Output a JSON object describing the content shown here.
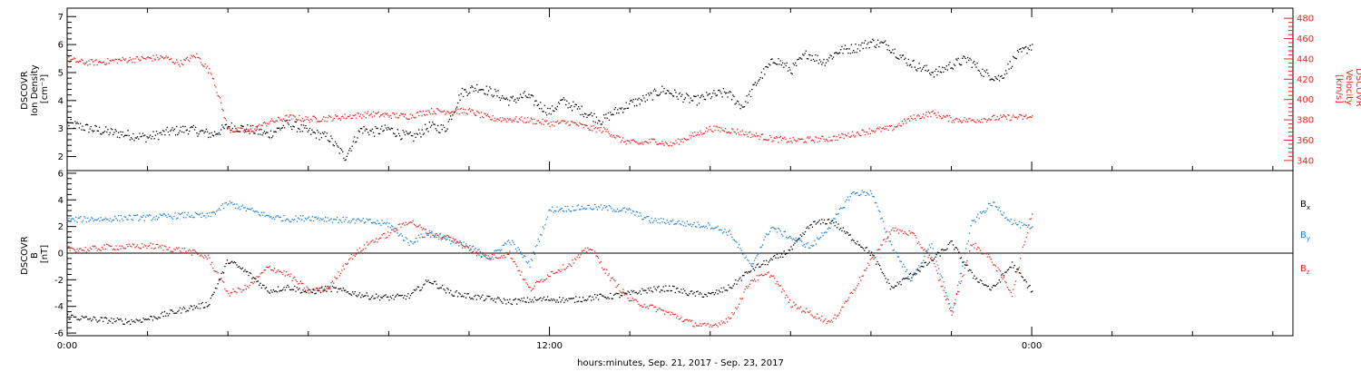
{
  "colors": {
    "density": "#000000",
    "velocity": "#e8261f",
    "bx": "#000000",
    "by": "#1b7fd6",
    "bz": "#e8261f",
    "axis": "#000000"
  },
  "chart_data": [
    {
      "type": "scatter",
      "panel": "plasma",
      "ylabel_lines": [
        "DSCOVR",
        "Ion Density",
        "[cm⁻³]"
      ],
      "y2label_lines": [
        "DSCOVR",
        "Velocity",
        "[km/s]"
      ],
      "ylim": [
        1.5,
        7.3
      ],
      "yticks": [
        "2",
        "3",
        "4",
        "5",
        "6",
        "7"
      ],
      "y2lim": [
        330,
        490
      ],
      "y2ticks": [
        "340",
        "360",
        "380",
        "400",
        "420",
        "440",
        "460",
        "480"
      ],
      "series": [
        {
          "axis": "left",
          "color": "#000000",
          "x": [
            0,
            0.3,
            0.6,
            1.0,
            1.5,
            2.0,
            2.5,
            3.0,
            3.3,
            3.6,
            4.0,
            4.5,
            5.0,
            5.5,
            6.0,
            6.5,
            6.9,
            7.3,
            7.6,
            8.0,
            8.3,
            8.6,
            9.0,
            9.4,
            9.8,
            10.2,
            10.6,
            11.0,
            11.4,
            11.8,
            12.0,
            12.3,
            12.6,
            13.0,
            13.3,
            13.6,
            14.0,
            14.4,
            14.8,
            15.2,
            15.6,
            16.0,
            16.4,
            16.8,
            17.2,
            17.6,
            18.0,
            18.4,
            18.8,
            19.2,
            19.6,
            20.0,
            20.4,
            20.8,
            21.2,
            21.6,
            22.0,
            22.4,
            22.8,
            23.2,
            23.6,
            24.0
          ],
          "y": [
            3.2,
            3.1,
            3.0,
            2.9,
            2.8,
            2.7,
            2.9,
            3.0,
            2.9,
            2.8,
            3.1,
            3.0,
            2.8,
            3.2,
            2.9,
            2.7,
            2.0,
            3.0,
            2.9,
            3.0,
            2.8,
            2.7,
            3.1,
            3.0,
            4.3,
            4.5,
            4.3,
            4.0,
            4.2,
            3.8,
            3.6,
            4.0,
            3.8,
            3.5,
            3.3,
            3.6,
            3.9,
            4.1,
            4.4,
            4.2,
            4.0,
            4.2,
            4.3,
            3.8,
            4.8,
            5.5,
            5.1,
            5.7,
            5.4,
            5.8,
            5.9,
            6.1,
            6.0,
            5.5,
            5.2,
            5.0,
            5.3,
            5.5,
            5.0,
            4.8,
            5.6,
            6.0
          ]
        },
        {
          "axis": "right",
          "color": "#e8261f",
          "x": [
            0,
            0.4,
            0.8,
            1.2,
            1.6,
            2.0,
            2.4,
            2.8,
            3.2,
            3.6,
            4.0,
            4.5,
            5.0,
            5.5,
            6.0,
            6.5,
            7.0,
            7.5,
            8.0,
            8.5,
            9.0,
            9.5,
            10.0,
            10.5,
            11.0,
            11.5,
            12.0,
            12.5,
            13.0,
            13.4,
            13.8,
            14.2,
            14.6,
            15.0,
            15.5,
            16.0,
            16.5,
            17.0,
            17.5,
            18.0,
            18.5,
            19.0,
            19.5,
            20.0,
            20.5,
            21.0,
            21.5,
            22.0,
            22.5,
            23.0,
            23.5,
            24.0
          ],
          "y": [
            440,
            437,
            437,
            439,
            440,
            441,
            442,
            436,
            444,
            425,
            371,
            369,
            378,
            383,
            381,
            382,
            384,
            386,
            385,
            384,
            389,
            389,
            389,
            382,
            381,
            380,
            377,
            378,
            372,
            370,
            360,
            357,
            360,
            356,
            364,
            372,
            370,
            366,
            362,
            360,
            361,
            362,
            366,
            370,
            372,
            382,
            387,
            381,
            380,
            382,
            383,
            383
          ]
        }
      ]
    },
    {
      "type": "scatter",
      "panel": "magnetic",
      "ylabel_lines": [
        "DSCOVR",
        "B",
        "[nT]"
      ],
      "ylim": [
        -6.2,
        6.2
      ],
      "yticks": [
        "-6",
        "-4",
        "-2",
        "0",
        "2",
        "4",
        "6"
      ],
      "legend_position": "right",
      "series": [
        {
          "name": "Bx",
          "color": "#000000",
          "x": [
            0,
            0.5,
            1.0,
            1.5,
            2.0,
            2.5,
            3.0,
            3.5,
            4.0,
            4.5,
            5.0,
            5.5,
            6.0,
            6.5,
            7.0,
            7.5,
            8.0,
            8.5,
            9.0,
            9.5,
            10.0,
            10.5,
            11.0,
            11.5,
            12.0,
            12.5,
            13.0,
            13.5,
            14.0,
            14.5,
            15.0,
            15.5,
            16.0,
            16.5,
            17.0,
            17.5,
            18.0,
            18.5,
            19.0,
            19.5,
            20.0,
            20.5,
            21.0,
            21.5,
            22.0,
            22.5,
            23.0,
            23.5,
            24.0
          ],
          "y": [
            -4.7,
            -4.9,
            -5.0,
            -5.1,
            -4.9,
            -4.5,
            -4.1,
            -3.8,
            -0.5,
            -1.5,
            -2.8,
            -2.5,
            -2.9,
            -2.6,
            -2.9,
            -3.2,
            -3.3,
            -3.2,
            -2.0,
            -2.9,
            -3.2,
            -3.4,
            -3.6,
            -3.5,
            -3.4,
            -3.5,
            -3.3,
            -3.2,
            -3.0,
            -2.7,
            -2.6,
            -3.0,
            -3.1,
            -2.5,
            -1.2,
            -0.5,
            0.3,
            2.2,
            2.5,
            1.2,
            0.0,
            -2.6,
            -1.6,
            -0.5,
            0.8,
            -1.6,
            -2.7,
            -0.8,
            -2.8
          ]
        },
        {
          "name": "By",
          "color": "#1b7fd6",
          "x": [
            0,
            0.5,
            1.0,
            1.5,
            2.0,
            2.5,
            3.0,
            3.5,
            4.0,
            4.5,
            5.0,
            5.5,
            6.0,
            6.5,
            7.0,
            7.5,
            8.0,
            8.5,
            9.0,
            9.5,
            10.0,
            10.5,
            11.0,
            11.5,
            12.0,
            12.5,
            13.0,
            13.5,
            14.0,
            14.5,
            15.0,
            15.5,
            16.0,
            16.5,
            17.0,
            17.5,
            18.0,
            18.5,
            19.0,
            19.5,
            20.0,
            20.5,
            21.0,
            21.5,
            22.0,
            22.5,
            23.0,
            23.5,
            24.0
          ],
          "y": [
            2.5,
            2.6,
            2.6,
            2.7,
            2.7,
            2.8,
            2.9,
            2.8,
            3.8,
            3.3,
            2.8,
            2.6,
            2.7,
            2.6,
            2.5,
            2.4,
            2.2,
            0.8,
            1.6,
            1.0,
            0.5,
            -0.3,
            1.0,
            -0.8,
            3.3,
            3.4,
            3.5,
            3.4,
            3.2,
            2.5,
            2.4,
            2.2,
            2.1,
            1.5,
            -1.0,
            2.0,
            1.2,
            0.5,
            2.2,
            4.5,
            4.6,
            0.6,
            -2.0,
            0.8,
            -4.5,
            2.3,
            3.8,
            2.4,
            1.8
          ]
        },
        {
          "name": "Bz",
          "color": "#e8261f",
          "x": [
            0,
            0.5,
            1.0,
            1.5,
            2.0,
            2.5,
            3.0,
            3.5,
            4.0,
            4.5,
            5.0,
            5.5,
            6.0,
            6.5,
            7.0,
            7.5,
            8.0,
            8.5,
            9.0,
            9.5,
            10.0,
            10.5,
            11.0,
            11.5,
            12.0,
            12.5,
            13.0,
            13.5,
            14.0,
            14.5,
            15.0,
            15.5,
            16.0,
            16.5,
            17.0,
            17.5,
            18.0,
            18.5,
            19.0,
            19.5,
            20.0,
            20.5,
            21.0,
            21.5,
            22.0,
            22.5,
            23.0,
            23.5,
            24.0
          ],
          "y": [
            0.4,
            0.3,
            0.5,
            0.5,
            0.6,
            0.4,
            0.2,
            -0.3,
            -3.0,
            -2.5,
            -1.0,
            -1.6,
            -2.8,
            -2.6,
            -0.4,
            0.8,
            1.5,
            2.5,
            1.5,
            1.2,
            0.3,
            -0.3,
            0.0,
            -2.7,
            -1.5,
            -0.8,
            0.5,
            -1.8,
            -3.5,
            -4.0,
            -4.5,
            -5.2,
            -5.5,
            -4.8,
            -2.0,
            -1.5,
            -3.8,
            -4.5,
            -5.2,
            -3.0,
            -0.5,
            1.8,
            1.5,
            -0.4,
            -4.5,
            0.8,
            -0.5,
            -3.0,
            3.2
          ]
        }
      ]
    }
  ],
  "legend": {
    "bx_label": "B",
    "bx_sub": "x",
    "by_label": "B",
    "by_sub": "y",
    "bz_label": "B",
    "bz_sub": "z"
  },
  "x_axis": {
    "ticks": [
      "0:00",
      "12:00",
      "0:00"
    ],
    "tick_hours": [
      0,
      12,
      24
    ],
    "xlim_hours": [
      0,
      30.5
    ],
    "caption": "hours:minutes, Sep. 21, 2017 - Sep. 23, 2017"
  }
}
